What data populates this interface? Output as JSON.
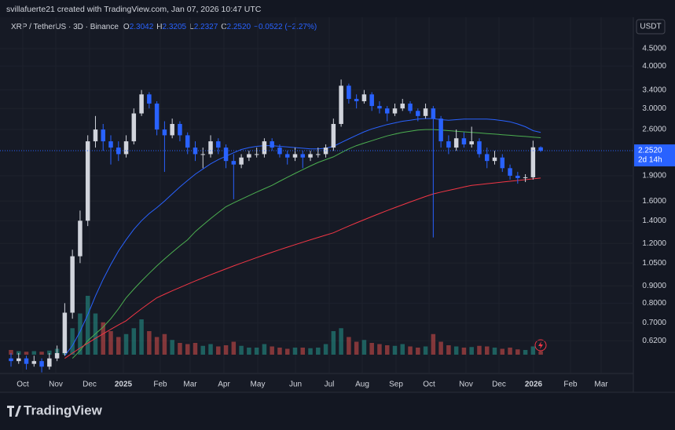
{
  "header": {
    "text": "svillafuerte21 created with TradingView.com, Jan 07, 2026 10:47 UTC"
  },
  "footer": {
    "logo": "TradingView"
  },
  "chart_data": {
    "type": "candlestick",
    "symbol": "XRP / TetherUS · 3D · Binance",
    "currency": "USDT",
    "ohlc_letters": [
      "O",
      "H",
      "L",
      "C"
    ],
    "ohlc_labels": [
      "2.3042",
      "2.3205",
      "2.2327",
      "2.2520"
    ],
    "change": -0.0522,
    "change_label": "−0.0522 (−2.27%)",
    "last_price": {
      "value": 2.252,
      "label": "2.2520"
    },
    "countdown": "2d 14h",
    "log_scale": true,
    "ylim": [
      0.499,
      5.57
    ],
    "yticks": [
      {
        "value": 4.5,
        "label": "4.5000"
      },
      {
        "value": 4,
        "label": "4.0000"
      },
      {
        "value": 3.4,
        "label": "3.4000"
      },
      {
        "value": 3,
        "label": "3.0000"
      },
      {
        "value": 2.6,
        "label": "2.6000"
      },
      {
        "value": 1.9,
        "label": "1.9000"
      },
      {
        "value": 1.6,
        "label": "1.6000"
      },
      {
        "value": 1.4,
        "label": "1.4000"
      },
      {
        "value": 1.2,
        "label": "1.2000"
      },
      {
        "value": 1.05,
        "label": "1.0500"
      },
      {
        "value": 0.9,
        "label": "0.9000"
      },
      {
        "value": 0.8,
        "label": "0.8000"
      },
      {
        "value": 0.7,
        "label": "0.7000"
      },
      {
        "value": 0.62,
        "label": "0.6200"
      }
    ],
    "x_labels": [
      "Oct",
      "Nov",
      "Dec",
      "2025",
      "Feb",
      "Mar",
      "Apr",
      "May",
      "Jun",
      "Jul",
      "Aug",
      "Sep",
      "Oct",
      "Nov",
      "Dec",
      "2026",
      "Feb",
      "Mar"
    ],
    "up_color": "#d1d4dc",
    "down_color": "#2962ff",
    "candles": [
      [
        0.55,
        0.57,
        0.52,
        0.54
      ],
      [
        0.54,
        0.57,
        0.53,
        0.55
      ],
      [
        0.55,
        0.56,
        0.51,
        0.53
      ],
      [
        0.53,
        0.56,
        0.52,
        0.54
      ],
      [
        0.54,
        0.55,
        0.5,
        0.52
      ],
      [
        0.52,
        0.57,
        0.51,
        0.55
      ],
      [
        0.55,
        0.6,
        0.54,
        0.57
      ],
      [
        0.57,
        0.8,
        0.56,
        0.75
      ],
      [
        0.75,
        1.15,
        0.72,
        1.1
      ],
      [
        1.1,
        1.5,
        1.05,
        1.4
      ],
      [
        1.4,
        2.5,
        1.35,
        2.4
      ],
      [
        2.4,
        2.85,
        2.3,
        2.6
      ],
      [
        2.6,
        2.7,
        2.25,
        2.4
      ],
      [
        2.4,
        2.5,
        2.05,
        2.3
      ],
      [
        2.3,
        2.4,
        2.1,
        2.2
      ],
      [
        2.2,
        2.5,
        2.15,
        2.4
      ],
      [
        2.4,
        3.0,
        2.35,
        2.9
      ],
      [
        2.9,
        3.4,
        2.85,
        3.3
      ],
      [
        3.3,
        3.35,
        3.0,
        3.1
      ],
      [
        3.1,
        3.15,
        2.5,
        2.6
      ],
      [
        2.6,
        2.75,
        1.95,
        2.5
      ],
      [
        2.5,
        2.8,
        2.45,
        2.7
      ],
      [
        2.7,
        2.75,
        2.4,
        2.5
      ],
      [
        2.5,
        2.55,
        2.2,
        2.3
      ],
      [
        2.3,
        2.4,
        2.1,
        2.2
      ],
      [
        2.2,
        2.3,
        2.0,
        2.2
      ],
      [
        2.2,
        2.5,
        2.15,
        2.4
      ],
      [
        2.4,
        2.45,
        2.2,
        2.3
      ],
      [
        2.3,
        2.35,
        2.0,
        2.1
      ],
      [
        2.1,
        2.2,
        1.62,
        2.05
      ],
      [
        2.05,
        2.2,
        2.0,
        2.15
      ],
      [
        2.15,
        2.25,
        2.1,
        2.2
      ],
      [
        2.2,
        2.3,
        2.15,
        2.2
      ],
      [
        2.2,
        2.45,
        2.15,
        2.4
      ],
      [
        2.4,
        2.45,
        2.25,
        2.3
      ],
      [
        2.3,
        2.35,
        2.15,
        2.2
      ],
      [
        2.2,
        2.25,
        2.05,
        2.15
      ],
      [
        2.15,
        2.3,
        2.1,
        2.2
      ],
      [
        2.2,
        2.25,
        2.0,
        2.15
      ],
      [
        2.15,
        2.25,
        2.1,
        2.2
      ],
      [
        2.2,
        2.3,
        2.15,
        2.2
      ],
      [
        2.2,
        2.35,
        2.15,
        2.3
      ],
      [
        2.3,
        2.8,
        2.25,
        2.7
      ],
      [
        2.7,
        3.65,
        2.65,
        3.5
      ],
      [
        3.5,
        3.55,
        3.1,
        3.2
      ],
      [
        3.2,
        3.3,
        3.0,
        3.15
      ],
      [
        3.15,
        3.4,
        3.1,
        3.3
      ],
      [
        3.3,
        3.35,
        2.95,
        3.05
      ],
      [
        3.05,
        3.15,
        2.9,
        3.0
      ],
      [
        3.0,
        3.05,
        2.75,
        2.9
      ],
      [
        2.9,
        3.1,
        2.85,
        3.0
      ],
      [
        3.0,
        3.2,
        2.95,
        3.1
      ],
      [
        3.1,
        3.15,
        2.9,
        2.95
      ],
      [
        2.95,
        3.0,
        2.75,
        2.85
      ],
      [
        2.85,
        3.1,
        2.8,
        3.0
      ],
      [
        3.0,
        3.05,
        1.25,
        2.8
      ],
      [
        2.8,
        2.85,
        2.3,
        2.4
      ],
      [
        2.4,
        2.5,
        2.2,
        2.3
      ],
      [
        2.3,
        2.6,
        2.25,
        2.45
      ],
      [
        2.45,
        2.55,
        2.3,
        2.35
      ],
      [
        2.35,
        2.65,
        2.3,
        2.4
      ],
      [
        2.4,
        2.45,
        2.15,
        2.2
      ],
      [
        2.2,
        2.3,
        2.0,
        2.1
      ],
      [
        2.1,
        2.25,
        2.05,
        2.15
      ],
      [
        2.15,
        2.2,
        1.95,
        2.0
      ],
      [
        2.0,
        2.05,
        1.85,
        1.9
      ],
      [
        1.9,
        1.95,
        1.8,
        1.87
      ],
      [
        1.87,
        1.92,
        1.82,
        1.88
      ],
      [
        1.88,
        2.41,
        1.85,
        2.3042
      ],
      [
        2.3042,
        2.3205,
        2.2327,
        2.252
      ]
    ],
    "volume": {
      "up_color": "#26a69a",
      "down_color": "#ef5350",
      "values": [
        8,
        6,
        5,
        6,
        5,
        7,
        10,
        30,
        45,
        70,
        100,
        70,
        55,
        40,
        30,
        35,
        45,
        60,
        40,
        30,
        35,
        25,
        20,
        18,
        20,
        15,
        18,
        14,
        16,
        22,
        15,
        12,
        12,
        18,
        14,
        12,
        10,
        12,
        12,
        11,
        12,
        18,
        40,
        45,
        30,
        22,
        25,
        20,
        18,
        16,
        15,
        18,
        14,
        12,
        14,
        35,
        22,
        16,
        14,
        12,
        13,
        15,
        14,
        12,
        10,
        12,
        9,
        8,
        14,
        6
      ]
    },
    "series": [
      {
        "color": "#2962ff",
        "values": [
          null,
          null,
          null,
          null,
          null,
          null,
          null,
          0.56,
          0.6,
          0.66,
          0.74,
          0.84,
          0.94,
          1.04,
          1.14,
          1.23,
          1.32,
          1.4,
          1.47,
          1.53,
          1.6,
          1.68,
          1.76,
          1.84,
          1.92,
          1.99,
          2.06,
          2.12,
          2.17,
          2.22,
          2.27,
          2.3,
          2.32,
          2.33,
          2.33,
          2.32,
          2.31,
          2.3,
          2.29,
          2.28,
          2.28,
          2.29,
          2.32,
          2.38,
          2.44,
          2.5,
          2.56,
          2.61,
          2.65,
          2.69,
          2.72,
          2.75,
          2.77,
          2.79,
          2.8,
          2.8,
          2.78,
          2.77,
          2.78,
          2.79,
          2.79,
          2.79,
          2.79,
          2.78,
          2.76,
          2.74,
          2.7,
          2.65,
          2.58,
          2.55
        ]
      },
      {
        "color": "#4caf50",
        "values": [
          null,
          null,
          null,
          null,
          null,
          null,
          null,
          null,
          0.55,
          0.58,
          0.62,
          0.65,
          0.68,
          0.72,
          0.77,
          0.83,
          0.88,
          0.93,
          0.98,
          1.03,
          1.08,
          1.13,
          1.18,
          1.23,
          1.3,
          1.36,
          1.42,
          1.48,
          1.54,
          1.58,
          1.62,
          1.66,
          1.7,
          1.74,
          1.78,
          1.83,
          1.88,
          1.93,
          1.98,
          2.03,
          2.08,
          2.12,
          2.16,
          2.22,
          2.28,
          2.33,
          2.37,
          2.41,
          2.45,
          2.49,
          2.52,
          2.55,
          2.57,
          2.59,
          2.6,
          2.6,
          2.59,
          2.58,
          2.57,
          2.56,
          2.55,
          2.54,
          2.53,
          2.52,
          2.51,
          2.5,
          2.49,
          2.48,
          2.47,
          2.46
        ]
      },
      {
        "color": "#f23645",
        "values": [
          null,
          null,
          null,
          null,
          null,
          null,
          null,
          0.55,
          0.57,
          0.59,
          0.61,
          0.63,
          0.65,
          0.67,
          0.69,
          0.71,
          0.74,
          0.77,
          0.8,
          0.83,
          0.85,
          0.87,
          0.89,
          0.91,
          0.93,
          0.95,
          0.97,
          0.99,
          1.01,
          1.03,
          1.05,
          1.07,
          1.09,
          1.11,
          1.13,
          1.15,
          1.17,
          1.19,
          1.21,
          1.23,
          1.25,
          1.27,
          1.29,
          1.32,
          1.35,
          1.38,
          1.41,
          1.44,
          1.47,
          1.5,
          1.53,
          1.56,
          1.59,
          1.62,
          1.65,
          1.68,
          1.7,
          1.72,
          1.74,
          1.76,
          1.78,
          1.79,
          1.8,
          1.81,
          1.82,
          1.83,
          1.84,
          1.85,
          1.86,
          1.87
        ]
      }
    ]
  }
}
